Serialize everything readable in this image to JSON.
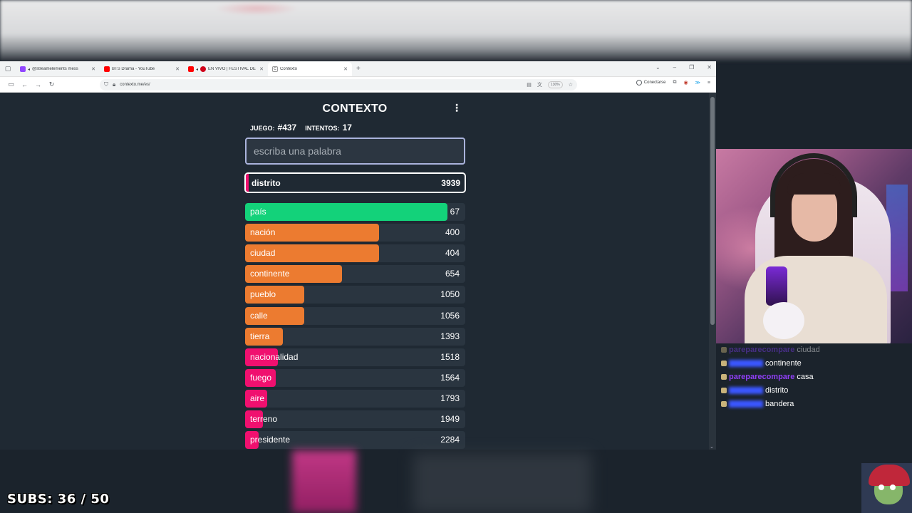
{
  "browser": {
    "tabs": [
      {
        "title": "@streamelements mess",
        "favicon_color": "#9146ff",
        "active": false
      },
      {
        "title": "BTS Drama - YouTube",
        "favicon_color": "#ff0000",
        "active": false
      },
      {
        "title": "EN VIVO | FESTIVAL DE",
        "favicon_color": "#ff0000",
        "active": false
      },
      {
        "title": "Contexto",
        "favicon_color": "#f5a623",
        "active": true
      }
    ],
    "new_tab": "+",
    "url": "contexto.me/es/",
    "zoom": "130%",
    "connect_label": "Conectarse"
  },
  "game": {
    "title": "CONTEXTO",
    "game_label": "JUEGO:",
    "game_number": "#437",
    "attempts_label": "INTENTOS:",
    "attempts": "17",
    "input_placeholder": "escriba una palabra",
    "last_guess": {
      "word": "distrito",
      "rank": "3939"
    },
    "guesses": [
      {
        "word": "país",
        "rank": "67",
        "color": "#13d27a",
        "fill": 0.92
      },
      {
        "word": "nación",
        "rank": "400",
        "color": "#ec7b30",
        "fill": 0.61
      },
      {
        "word": "ciudad",
        "rank": "404",
        "color": "#ec7b30",
        "fill": 0.61
      },
      {
        "word": "continente",
        "rank": "654",
        "color": "#ec7b30",
        "fill": 0.44
      },
      {
        "word": "pueblo",
        "rank": "1050",
        "color": "#ec7b30",
        "fill": 0.27
      },
      {
        "word": "calle",
        "rank": "1056",
        "color": "#ec7b30",
        "fill": 0.27
      },
      {
        "word": "tierra",
        "rank": "1393",
        "color": "#ec7b30",
        "fill": 0.17
      },
      {
        "word": "nacionalidad",
        "rank": "1518",
        "color": "#f0106f",
        "fill": 0.15
      },
      {
        "word": "fuego",
        "rank": "1564",
        "color": "#f0106f",
        "fill": 0.14
      },
      {
        "word": "aire",
        "rank": "1793",
        "color": "#f0106f",
        "fill": 0.1
      },
      {
        "word": "terreno",
        "rank": "1949",
        "color": "#f0106f",
        "fill": 0.08
      },
      {
        "word": "presidente",
        "rank": "2284",
        "color": "#f0106f",
        "fill": 0.06
      }
    ]
  },
  "chat": [
    {
      "user": "pareparecompare",
      "message": "ciudad",
      "user_color": "#7b3df0",
      "faded": true
    },
    {
      "user": "",
      "message": "continente",
      "user_color": "#3b56ff",
      "faded": false
    },
    {
      "user": "pareparecompare",
      "message": "casa",
      "user_color": "#8f3ff5",
      "faded": false
    },
    {
      "user": "",
      "message": "distrito",
      "user_color": "#3b56ff",
      "faded": false
    },
    {
      "user": "",
      "message": "bandera",
      "user_color": "#3b56ff",
      "faded": false
    }
  ],
  "overlay": {
    "subs_text": "SUBS: 36 / 50"
  }
}
